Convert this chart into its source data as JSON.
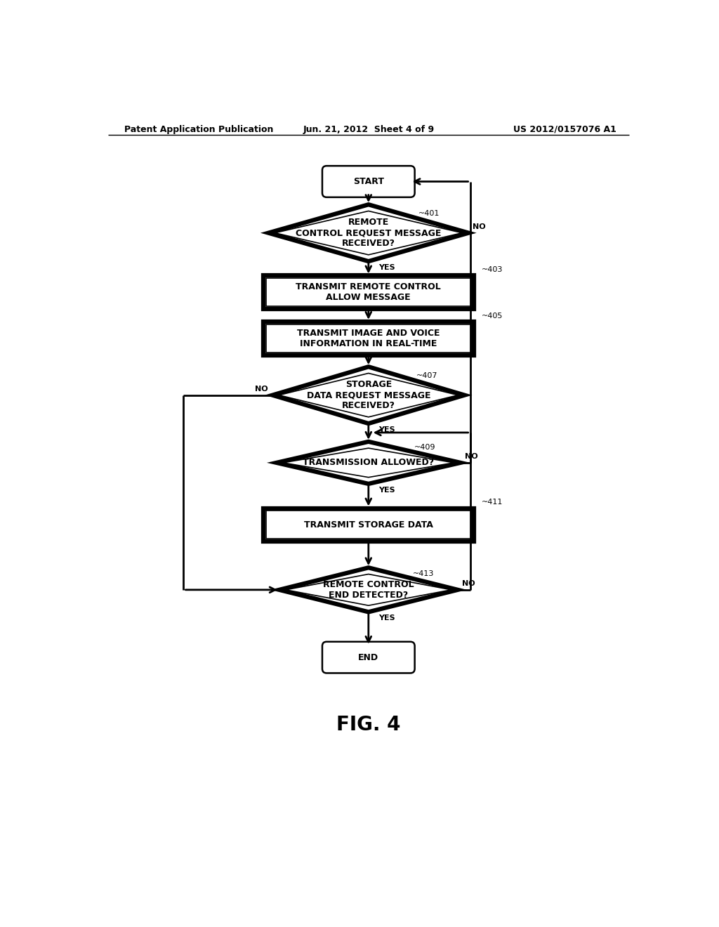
{
  "bg_color": "#ffffff",
  "header_left": "Patent Application Publication",
  "header_mid": "Jun. 21, 2012  Sheet 4 of 9",
  "header_right": "US 2012/0157076 A1",
  "figure_label": "FIG. 4",
  "line_width": 2.0,
  "arrow_lw": 2.0,
  "font_size_node": 9,
  "font_size_label": 8,
  "font_size_yesno": 8,
  "font_size_header": 9,
  "font_size_fig": 20,
  "font_size_terminal": 9
}
